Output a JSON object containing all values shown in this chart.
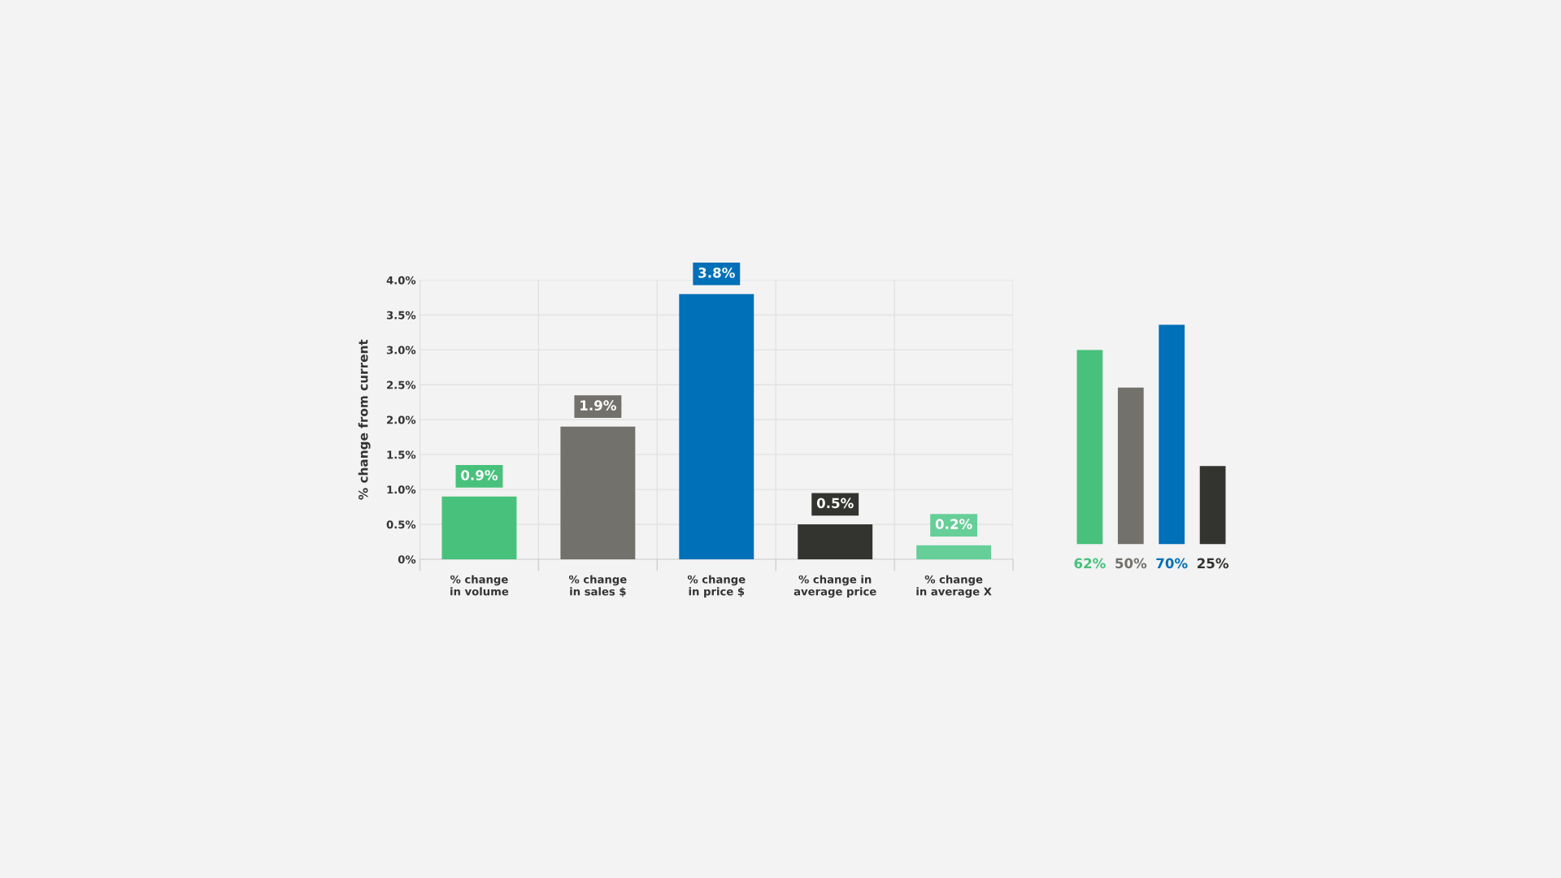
{
  "chart_data": [
    {
      "type": "bar",
      "ylabel": "% change from current",
      "categories": [
        "% change\nin volume",
        "% change\nin sales $",
        "% change\nin price $",
        "% change in\naverage price",
        "% change\nin average X"
      ],
      "values": [
        0.9,
        1.9,
        3.8,
        0.5,
        0.2
      ],
      "colors": [
        "#47c17b",
        "#72716c",
        "#0070b8",
        "#333330",
        "#66cf98"
      ],
      "value_labels": [
        "0.9%",
        "1.9%",
        "3.8%",
        "0.5%",
        "0.2%"
      ],
      "ylim": [
        0,
        4.0
      ],
      "yticks": [
        {
          "value": 0,
          "label": "0%"
        },
        {
          "value": 0.5,
          "label": "0.5%"
        },
        {
          "value": 1.0,
          "label": "1.0%"
        },
        {
          "value": 1.5,
          "label": "1.5%"
        },
        {
          "value": 2.0,
          "label": "2.0%"
        },
        {
          "value": 2.5,
          "label": "2.5%"
        },
        {
          "value": 3.0,
          "label": "3.0%"
        },
        {
          "value": 3.5,
          "label": "3.5%"
        },
        {
          "value": 4.0,
          "label": "4.0%"
        }
      ],
      "grid": true
    },
    {
      "type": "bar",
      "categories": [
        null,
        null,
        null,
        null
      ],
      "values": [
        62,
        50,
        70,
        25
      ],
      "colors": [
        "#47c17b",
        "#72716c",
        "#0070b8",
        "#333330"
      ],
      "value_labels": [
        "62%",
        "50%",
        "70%",
        "25%"
      ]
    }
  ]
}
